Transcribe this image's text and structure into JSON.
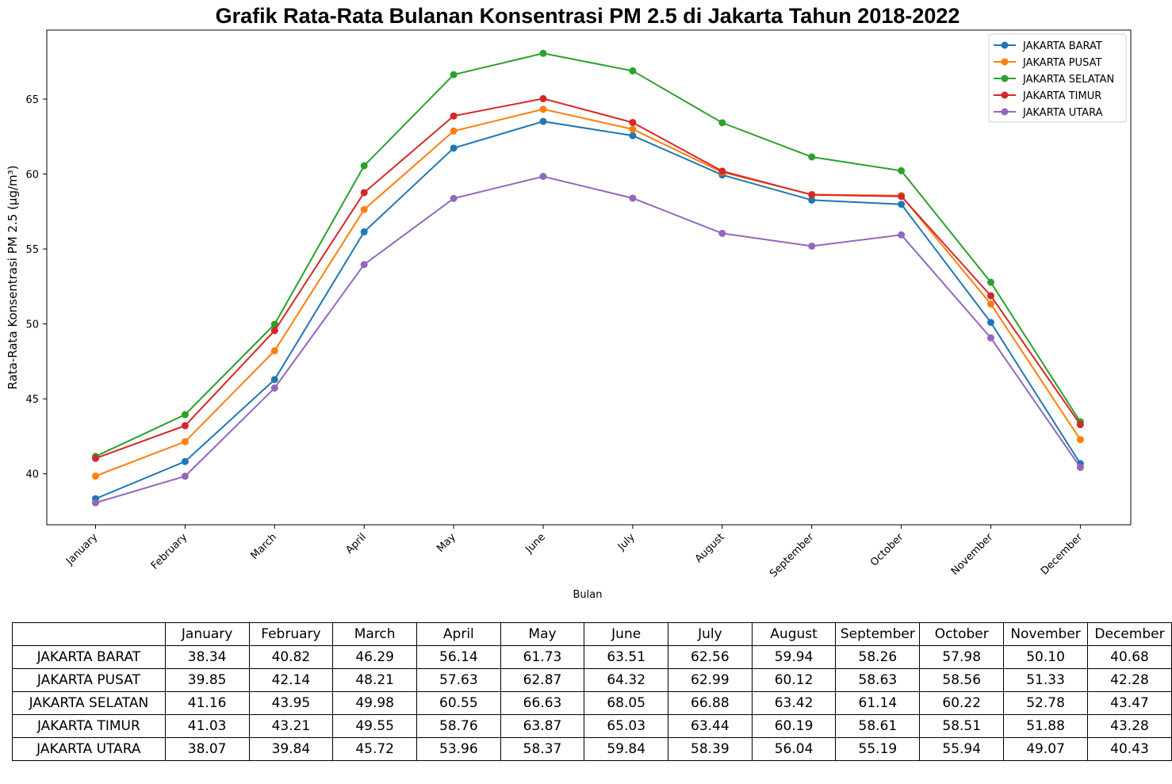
{
  "chart_data": {
    "type": "line",
    "title": "Grafik Rata-Rata Bulanan Konsentrasi PM 2.5 di Jakarta Tahun 2018-2022",
    "xlabel": "Bulan",
    "ylabel": "Rata-Rata Konsentrasi PM 2.5 (µg/m³)",
    "ylim": [
      36.6,
      69.6
    ],
    "yticks": [
      40,
      45,
      50,
      55,
      60,
      65
    ],
    "grid": false,
    "legend_position": "top-right",
    "categories": [
      "January",
      "February",
      "March",
      "April",
      "May",
      "June",
      "July",
      "August",
      "September",
      "October",
      "November",
      "December"
    ],
    "series": [
      {
        "name": "JAKARTA BARAT",
        "color": "#1f77b4",
        "values": [
          38.34,
          40.82,
          46.29,
          56.14,
          61.73,
          63.51,
          62.56,
          59.94,
          58.26,
          57.98,
          50.1,
          40.68
        ]
      },
      {
        "name": "JAKARTA PUSAT",
        "color": "#ff7f0e",
        "values": [
          39.85,
          42.14,
          48.21,
          57.63,
          62.87,
          64.32,
          62.99,
          60.12,
          58.63,
          58.56,
          51.33,
          42.28
        ]
      },
      {
        "name": "JAKARTA SELATAN",
        "color": "#2ca02c",
        "values": [
          41.16,
          43.95,
          49.98,
          60.55,
          66.63,
          68.05,
          66.88,
          63.42,
          61.14,
          60.22,
          52.78,
          43.47
        ]
      },
      {
        "name": "JAKARTA TIMUR",
        "color": "#d62728",
        "values": [
          41.03,
          43.21,
          49.55,
          58.76,
          63.87,
          65.03,
          63.44,
          60.19,
          58.61,
          58.51,
          51.88,
          43.28
        ]
      },
      {
        "name": "JAKARTA UTARA",
        "color": "#9467bd",
        "values": [
          38.07,
          39.84,
          45.72,
          53.96,
          58.37,
          59.84,
          58.39,
          56.04,
          55.19,
          55.94,
          49.07,
          40.43
        ]
      }
    ]
  },
  "table": {
    "headers": [
      "",
      "January",
      "February",
      "March",
      "April",
      "May",
      "June",
      "July",
      "August",
      "September",
      "October",
      "November",
      "December"
    ],
    "rows": [
      [
        "JAKARTA BARAT",
        "38.34",
        "40.82",
        "46.29",
        "56.14",
        "61.73",
        "63.51",
        "62.56",
        "59.94",
        "58.26",
        "57.98",
        "50.10",
        "40.68"
      ],
      [
        "JAKARTA PUSAT",
        "39.85",
        "42.14",
        "48.21",
        "57.63",
        "62.87",
        "64.32",
        "62.99",
        "60.12",
        "58.63",
        "58.56",
        "51.33",
        "42.28"
      ],
      [
        "JAKARTA SELATAN",
        "41.16",
        "43.95",
        "49.98",
        "60.55",
        "66.63",
        "68.05",
        "66.88",
        "63.42",
        "61.14",
        "60.22",
        "52.78",
        "43.47"
      ],
      [
        "JAKARTA TIMUR",
        "41.03",
        "43.21",
        "49.55",
        "58.76",
        "63.87",
        "65.03",
        "63.44",
        "60.19",
        "58.61",
        "58.51",
        "51.88",
        "43.28"
      ],
      [
        "JAKARTA UTARA",
        "38.07",
        "39.84",
        "45.72",
        "53.96",
        "58.37",
        "59.84",
        "58.39",
        "56.04",
        "55.19",
        "55.94",
        "49.07",
        "40.43"
      ]
    ]
  }
}
